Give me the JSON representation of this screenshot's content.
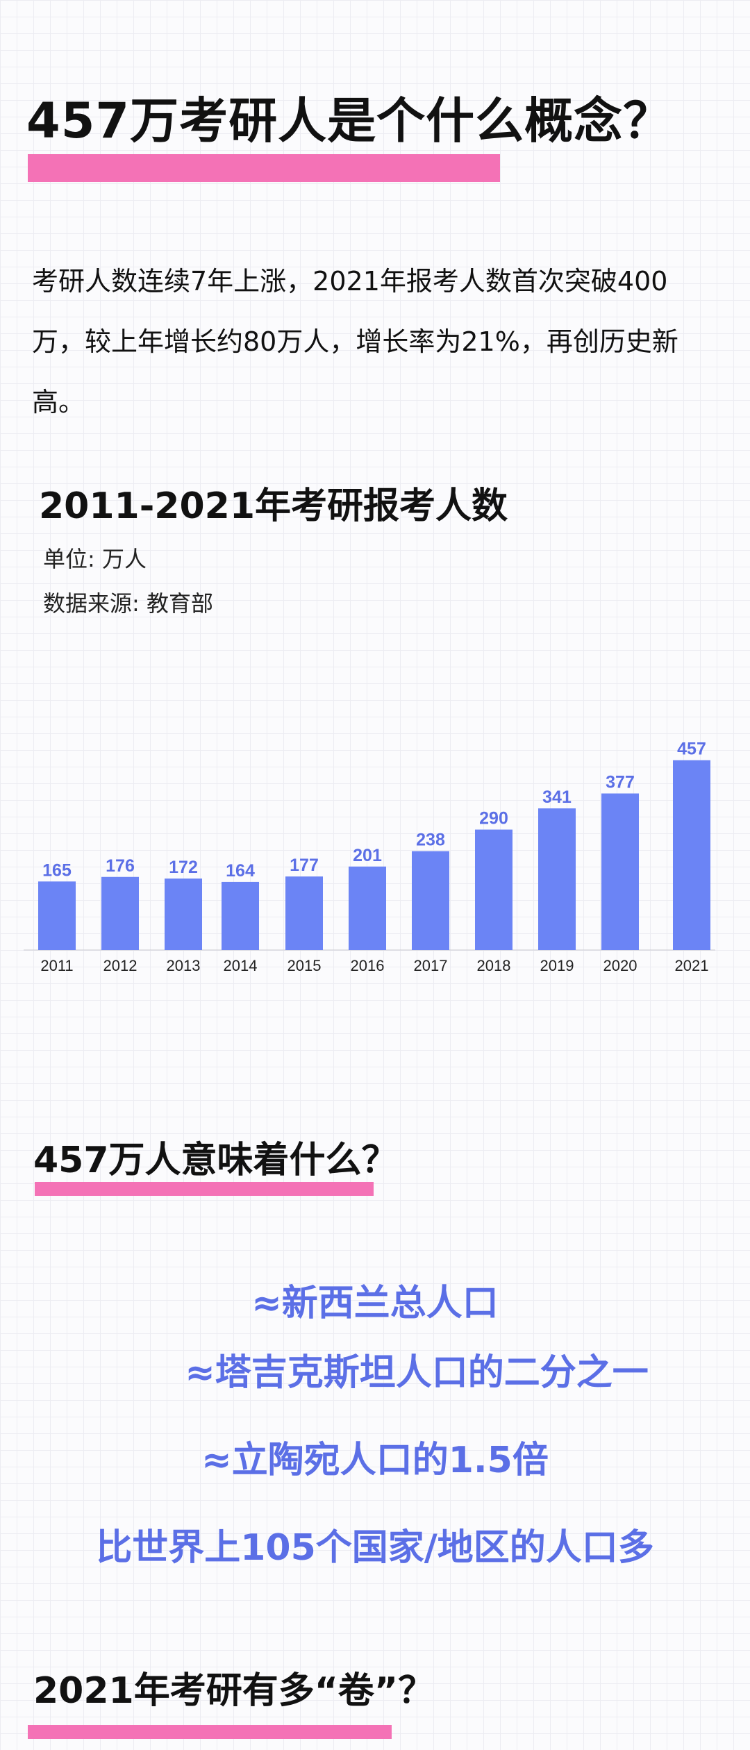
{
  "header": {
    "title": "457万考研人是个什么概念？",
    "accent_color": "#f472b6"
  },
  "intro": {
    "text": "考研人数连续7年上涨，2021年报考人数首次突破400万，较上年增长约80万人，增长率为21%，再创历史新高。"
  },
  "chart_data": {
    "type": "bar",
    "title": "2011-2021年考研报考人数",
    "unit_label": "单位: 万人",
    "source_label": "数据来源: 教育部",
    "categories": [
      "2011",
      "2012",
      "2013",
      "2014",
      "2015",
      "2016",
      "2017",
      "2018",
      "2019",
      "2020",
      "2021"
    ],
    "values": [
      165,
      176,
      172,
      164,
      177,
      201,
      238,
      290,
      341,
      377,
      457
    ],
    "bar_color": "#6b84f5",
    "label_color": "#5b6fe6",
    "ylim": [
      0,
      460
    ],
    "grid": false,
    "legend": "none"
  },
  "section2": {
    "title": "457万人意味着什么？",
    "facts": [
      "≈新西兰总人口",
      "≈塔吉克斯坦人口的二分之一",
      "≈立陶宛人口的1.5倍",
      "比世界上105个国家/地区的人口多"
    ],
    "fact_color": "#5b6fe6"
  },
  "section3": {
    "title": "2021年考研有多“卷”？"
  }
}
